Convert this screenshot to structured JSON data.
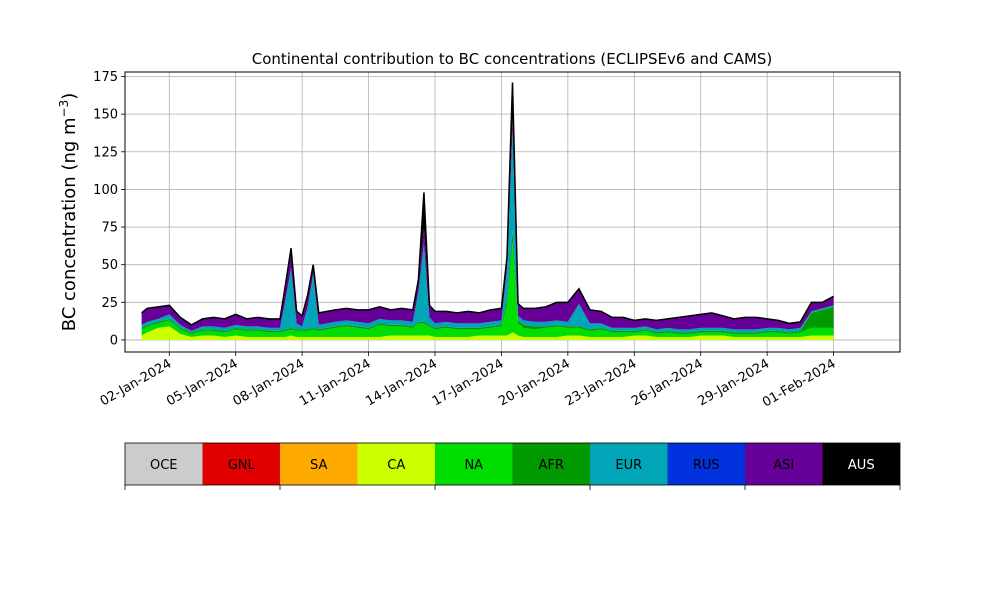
{
  "chart_data": {
    "type": "area",
    "title": "Continental contribution to BC concentrations (ECLIPSEv6 and CAMS)",
    "ylabel": "BC concentration (ng m",
    "ylabel_sup": "−3",
    "ylabel_close": ")",
    "xlabel": "",
    "ylim": [
      -8,
      178
    ],
    "xlim": [
      "2023-12-31T00:00",
      "2024-02-04T00:00"
    ],
    "yticks": [
      0,
      25,
      50,
      75,
      100,
      125,
      150,
      175
    ],
    "xticks": [
      "2024-01-02",
      "2024-01-05",
      "2024-01-08",
      "2024-01-11",
      "2024-01-14",
      "2024-01-17",
      "2024-01-20",
      "2024-01-23",
      "2024-01-26",
      "2024-01-29",
      "2024-02-01"
    ],
    "xtick_labels": [
      "02-Jan-2024",
      "05-Jan-2024",
      "08-Jan-2024",
      "11-Jan-2024",
      "14-Jan-2024",
      "17-Jan-2024",
      "20-Jan-2024",
      "23-Jan-2024",
      "26-Jan-2024",
      "29-Jan-2024",
      "01-Feb-2024"
    ],
    "grid": true,
    "stack_order": [
      "CA",
      "NA",
      "AFR",
      "EUR",
      "ASI"
    ],
    "x": [
      "2023-12-31T18:00",
      "2024-01-01T00:00",
      "2024-01-01T12:00",
      "2024-01-02T00:00",
      "2024-01-02T12:00",
      "2024-01-03T00:00",
      "2024-01-03T12:00",
      "2024-01-04T00:00",
      "2024-01-04T12:00",
      "2024-01-05T00:00",
      "2024-01-05T12:00",
      "2024-01-06T00:00",
      "2024-01-06T12:00",
      "2024-01-07T00:00",
      "2024-01-07T06:00",
      "2024-01-07T12:00",
      "2024-01-07T18:00",
      "2024-01-08T00:00",
      "2024-01-08T06:00",
      "2024-01-08T12:00",
      "2024-01-08T18:00",
      "2024-01-09T12:00",
      "2024-01-10T00:00",
      "2024-01-10T12:00",
      "2024-01-11T00:00",
      "2024-01-11T12:00",
      "2024-01-12T00:00",
      "2024-01-12T12:00",
      "2024-01-13T00:00",
      "2024-01-13T06:00",
      "2024-01-13T12:00",
      "2024-01-13T18:00",
      "2024-01-14T00:00",
      "2024-01-14T12:00",
      "2024-01-15T00:00",
      "2024-01-15T12:00",
      "2024-01-16T00:00",
      "2024-01-16T12:00",
      "2024-01-17T00:00",
      "2024-01-17T06:00",
      "2024-01-17T12:00",
      "2024-01-17T18:00",
      "2024-01-18T00:00",
      "2024-01-18T12:00",
      "2024-01-19T00:00",
      "2024-01-19T12:00",
      "2024-01-20T00:00",
      "2024-01-20T12:00",
      "2024-01-21T00:00",
      "2024-01-21T12:00",
      "2024-01-22T00:00",
      "2024-01-22T12:00",
      "2024-01-23T00:00",
      "2024-01-23T12:00",
      "2024-01-24T00:00",
      "2024-01-24T12:00",
      "2024-01-25T00:00",
      "2024-01-25T12:00",
      "2024-01-26T00:00",
      "2024-01-26T12:00",
      "2024-01-27T00:00",
      "2024-01-27T12:00",
      "2024-01-28T00:00",
      "2024-01-28T12:00",
      "2024-01-29T00:00",
      "2024-01-29T12:00",
      "2024-01-30T00:00",
      "2024-01-30T12:00",
      "2024-01-31T00:00",
      "2024-01-31T12:00",
      "2024-02-01T00:00"
    ],
    "series": [
      {
        "name": "CA",
        "color": "#ccff00",
        "values": [
          3,
          5,
          8,
          9,
          4,
          2,
          3,
          3,
          2,
          3,
          2,
          2,
          2,
          2,
          2,
          3,
          2,
          2,
          2,
          2,
          2,
          2,
          2,
          2,
          2,
          2,
          3,
          3,
          3,
          3,
          3,
          3,
          2,
          2,
          2,
          2,
          3,
          3,
          3,
          3,
          5,
          3,
          2,
          2,
          2,
          2,
          3,
          3,
          2,
          2,
          2,
          2,
          3,
          3,
          2,
          2,
          2,
          2,
          3,
          3,
          3,
          2,
          2,
          2,
          2,
          2,
          2,
          2,
          3,
          3,
          3
        ]
      },
      {
        "name": "NA",
        "color": "#00dd00",
        "values": [
          4,
          4,
          3,
          4,
          3,
          2,
          3,
          3,
          3,
          4,
          4,
          4,
          3,
          3,
          4,
          4,
          4,
          4,
          4,
          5,
          4,
          6,
          7,
          6,
          5,
          8,
          6,
          6,
          5,
          8,
          8,
          6,
          5,
          6,
          5,
          5,
          4,
          5,
          6,
          20,
          60,
          8,
          6,
          5,
          6,
          7,
          5,
          5,
          4,
          5,
          3,
          3,
          2,
          3,
          2,
          3,
          2,
          2,
          2,
          2,
          2,
          2,
          2,
          2,
          3,
          3,
          2,
          3,
          5,
          5,
          5
        ]
      },
      {
        "name": "AFR",
        "color": "#009900",
        "values": [
          1,
          1,
          1,
          1,
          1,
          1,
          1,
          1,
          1,
          1,
          1,
          1,
          1,
          1,
          1,
          1,
          1,
          1,
          1,
          1,
          1,
          1,
          1,
          1,
          1,
          1,
          1,
          1,
          1,
          1,
          1,
          1,
          1,
          1,
          1,
          1,
          1,
          1,
          1,
          4,
          8,
          2,
          2,
          2,
          1,
          1,
          1,
          1,
          1,
          1,
          1,
          1,
          1,
          1,
          1,
          1,
          1,
          1,
          1,
          1,
          1,
          1,
          1,
          1,
          1,
          1,
          1,
          1,
          10,
          12,
          14
        ]
      },
      {
        "name": "EUR",
        "color": "#00a6b8",
        "values": [
          2,
          2,
          2,
          3,
          2,
          1,
          2,
          2,
          2,
          2,
          2,
          2,
          2,
          2,
          20,
          40,
          4,
          2,
          15,
          36,
          3,
          3,
          3,
          3,
          3,
          3,
          3,
          3,
          3,
          20,
          52,
          5,
          3,
          3,
          3,
          3,
          3,
          3,
          3,
          20,
          66,
          3,
          3,
          3,
          3,
          3,
          3,
          15,
          4,
          3,
          2,
          2,
          2,
          2,
          2,
          2,
          2,
          2,
          2,
          2,
          2,
          2,
          2,
          2,
          2,
          2,
          2,
          2,
          1,
          1,
          1
        ]
      },
      {
        "name": "ASI",
        "color": "#660099",
        "values": [
          8,
          9,
          8,
          6,
          5,
          4,
          5,
          6,
          6,
          7,
          5,
          6,
          6,
          6,
          10,
          8,
          8,
          7,
          8,
          5,
          8,
          8,
          8,
          8,
          9,
          8,
          7,
          8,
          8,
          8,
          10,
          8,
          8,
          7,
          7,
          8,
          7,
          8,
          8,
          8,
          8,
          8,
          8,
          9,
          10,
          12,
          13,
          10,
          9,
          8,
          7,
          7,
          5,
          5,
          6,
          6,
          8,
          9,
          9,
          10,
          8,
          7,
          8,
          8,
          6,
          5,
          4,
          4,
          6,
          4,
          6
        ]
      }
    ],
    "total": [
      18,
      21,
      22,
      23,
      15,
      10,
      14,
      15,
      14,
      17,
      14,
      15,
      14,
      14,
      37,
      56,
      19,
      16,
      30,
      49,
      18,
      20,
      21,
      20,
      20,
      22,
      20,
      21,
      20,
      40,
      74,
      23,
      19,
      19,
      18,
      19,
      18,
      20,
      21,
      55,
      147,
      24,
      21,
      21,
      22,
      25,
      25,
      34,
      20,
      19,
      15,
      15,
      13,
      14,
      13,
      14,
      15,
      16,
      17,
      18,
      16,
      14,
      15,
      15,
      14,
      13,
      11,
      12,
      25,
      25,
      29
    ],
    "peaks": [
      {
        "x": "2024-01-07T12:00",
        "y": 61
      },
      {
        "x": "2024-01-08T12:00",
        "y": 50
      },
      {
        "x": "2024-01-13T12:00",
        "y": 98
      },
      {
        "x": "2024-01-17T12:00",
        "y": 171
      }
    ],
    "legend": {
      "placement": "bottom",
      "items": [
        {
          "label": "OCE",
          "color": "#cccccc",
          "text_color": "#000000"
        },
        {
          "label": "GNL",
          "color": "#e00000",
          "text_color": "#000000"
        },
        {
          "label": "SA",
          "color": "#ffaa00",
          "text_color": "#000000"
        },
        {
          "label": "CA",
          "color": "#ccff00",
          "text_color": "#000000"
        },
        {
          "label": "NA",
          "color": "#00dd00",
          "text_color": "#000000"
        },
        {
          "label": "AFR",
          "color": "#009900",
          "text_color": "#000000"
        },
        {
          "label": "EUR",
          "color": "#00a6b8",
          "text_color": "#000000"
        },
        {
          "label": "RUS",
          "color": "#0033dd",
          "text_color": "#000000"
        },
        {
          "label": "ASI",
          "color": "#660099",
          "text_color": "#000000"
        },
        {
          "label": "AUS",
          "color": "#000000",
          "text_color": "#ffffff"
        }
      ]
    }
  }
}
